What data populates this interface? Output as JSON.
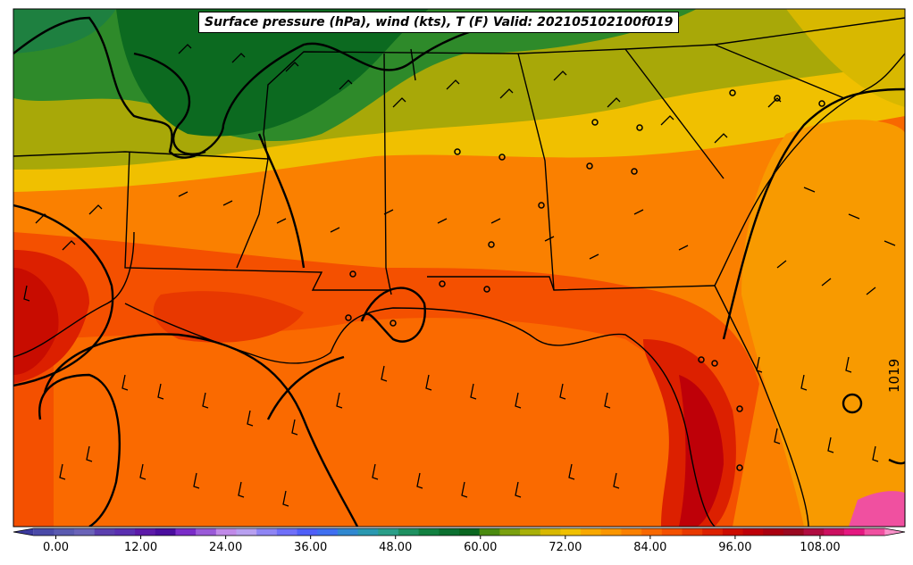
{
  "title": "Surface pressure (hPa), wind (kts), T (F) Valid: 202105102100f019",
  "isobar_label": "1019",
  "colorbar": {
    "min": -6,
    "max": 120,
    "step": 3,
    "ticks": [
      {
        "value": 0,
        "label": "0.00"
      },
      {
        "value": 12,
        "label": "12.00"
      },
      {
        "value": 24,
        "label": "24.00"
      },
      {
        "value": 36,
        "label": "36.00"
      },
      {
        "value": 48,
        "label": "48.00"
      },
      {
        "value": 60,
        "label": "60.00"
      },
      {
        "value": 72,
        "label": "72.00"
      },
      {
        "value": 84,
        "label": "84.00"
      },
      {
        "value": 96,
        "label": "96.00"
      },
      {
        "value": 108,
        "label": "108.00"
      }
    ],
    "colors": [
      "#3b3a9e",
      "#4a4aa8",
      "#5a5ab0",
      "#6a63b8",
      "#5b3fae",
      "#5a2fb0",
      "#5c1aa8",
      "#4a0e9e",
      "#7a2cc8",
      "#9a5ad8",
      "#c08ae8",
      "#b8a0f0",
      "#8f85f4",
      "#6f6ff8",
      "#4f5ff8",
      "#3f6ff0",
      "#3088d0",
      "#2a98b0",
      "#2a9e88",
      "#1e9060",
      "#128040",
      "#0c7030",
      "#0a6620",
      "#4a8a10",
      "#7aa010",
      "#a8b008",
      "#d8b800",
      "#f0c000",
      "#f8a800",
      "#fa9600",
      "#fa8000",
      "#f86800",
      "#f45000",
      "#e83800",
      "#dc2000",
      "#cc0c00",
      "#be0008",
      "#aa0010",
      "#9a0820",
      "#b00c40",
      "#cc1060",
      "#e41880",
      "#f050a0",
      "#f890c8"
    ]
  }
}
